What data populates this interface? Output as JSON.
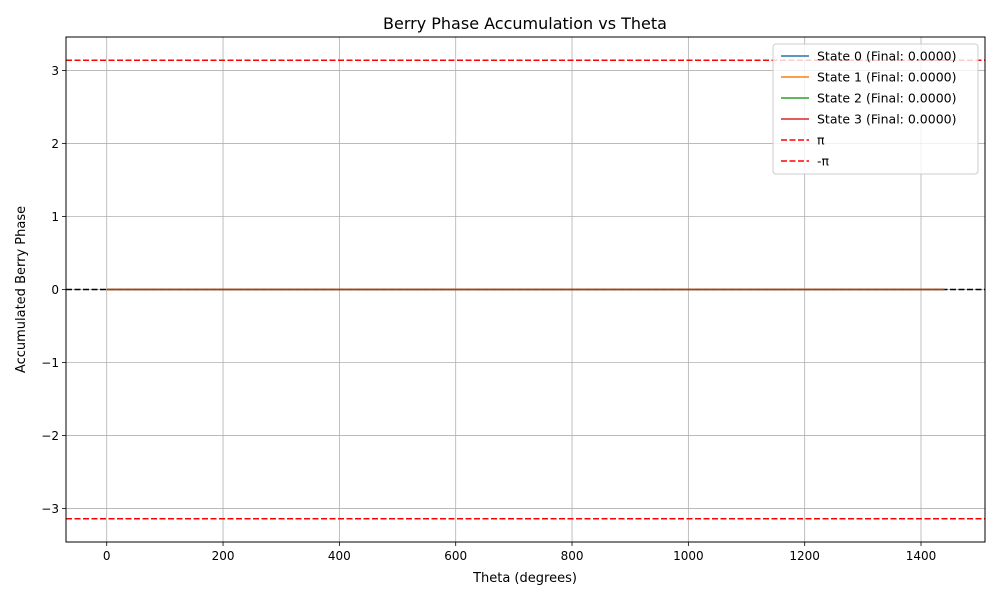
{
  "chart_data": {
    "type": "line",
    "title": "Berry Phase Accumulation vs Theta",
    "xlabel": "Theta (degrees)",
    "ylabel": "Accumulated Berry Phase",
    "xlim": [
      -70,
      1510
    ],
    "ylim": [
      -3.46,
      3.46
    ],
    "xticks": [
      0,
      200,
      400,
      600,
      800,
      1000,
      1200,
      1400
    ],
    "xtick_labels": [
      "0",
      "200",
      "400",
      "600",
      "800",
      "1000",
      "1200",
      "1400"
    ],
    "yticks": [
      -3,
      -2,
      -1,
      0,
      1,
      2,
      3
    ],
    "ytick_labels": [
      "−3",
      "−2",
      "−1",
      "0",
      "1",
      "2",
      "3"
    ],
    "grid": true,
    "legend_position": "top-right",
    "series": [
      {
        "name": "State 0 (Final: 0.0000)",
        "color": "#1f77b4",
        "style": "solid",
        "x": [
          0,
          1440
        ],
        "y": [
          0,
          0
        ]
      },
      {
        "name": "State 1 (Final: 0.0000)",
        "color": "#ff7f0e",
        "style": "solid",
        "x": [
          0,
          1440
        ],
        "y": [
          0,
          0
        ]
      },
      {
        "name": "State 2 (Final: 0.0000)",
        "color": "#2ca02c",
        "style": "solid",
        "x": [
          0,
          1440
        ],
        "y": [
          0,
          0
        ]
      },
      {
        "name": "State 3 (Final: 0.0000)",
        "color": "#d62728",
        "style": "solid",
        "x": [
          0,
          1440
        ],
        "y": [
          0,
          0
        ]
      }
    ],
    "reference_lines": [
      {
        "name": "π",
        "y": 3.14159,
        "color": "#ff0000",
        "style": "dashed",
        "in_legend": true
      },
      {
        "name": "-π",
        "y": -3.14159,
        "color": "#ff0000",
        "style": "dashed",
        "in_legend": true
      },
      {
        "name": "",
        "y": 0,
        "color": "#000000",
        "style": "dashed",
        "in_legend": false
      }
    ]
  }
}
